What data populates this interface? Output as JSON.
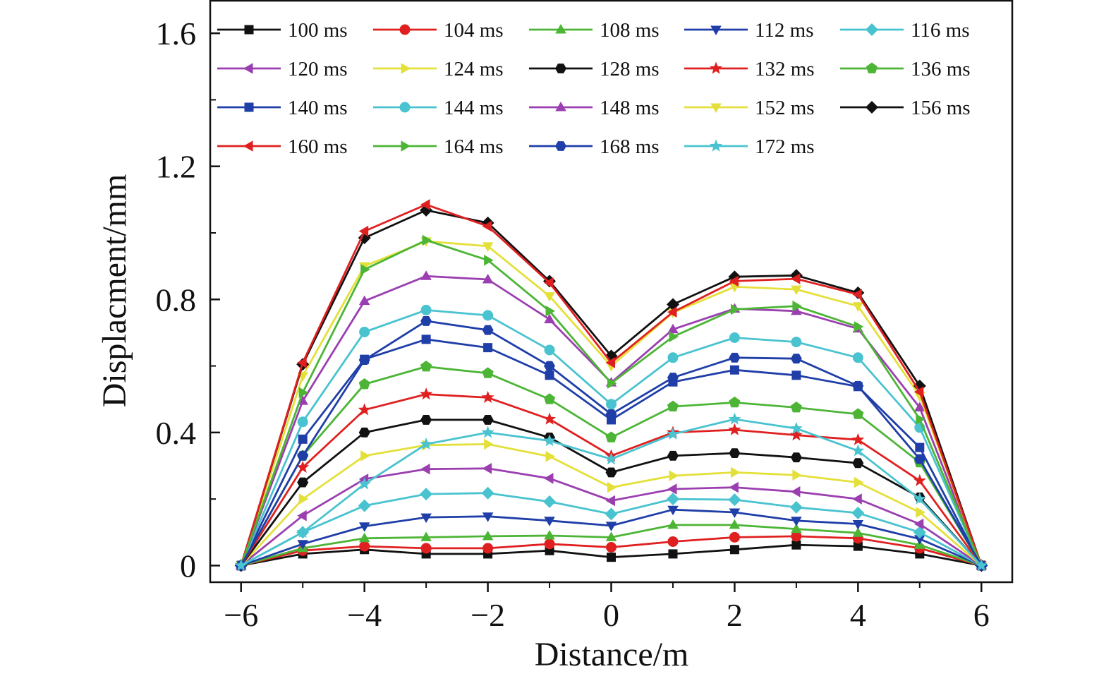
{
  "chart_data": {
    "type": "line",
    "xlabel": "Distance/m",
    "ylabel": "Displacment/mm",
    "xlim": [
      -6.5,
      6.5
    ],
    "ylim": [
      -0.05,
      1.7
    ],
    "xticks": [
      -6,
      -4,
      -2,
      0,
      2,
      4,
      6
    ],
    "xtick_labels": [
      "−6",
      "−4",
      "−2",
      "0",
      "2",
      "4",
      "6"
    ],
    "yticks": [
      0,
      0.4,
      0.8,
      1.2,
      1.6
    ],
    "ytick_labels": [
      "0",
      "0.4",
      "0.8",
      "1.2",
      "1.6"
    ],
    "grid": false,
    "legend_position": "top",
    "x": [
      -6,
      -5,
      -4,
      -3,
      -2,
      -1,
      0,
      1,
      2,
      3,
      4,
      5,
      6
    ],
    "series": [
      {
        "name": "100 ms",
        "color": "#111111",
        "marker": "square",
        "values": [
          0,
          0.035,
          0.048,
          0.035,
          0.035,
          0.045,
          0.025,
          0.035,
          0.048,
          0.062,
          0.058,
          0.035,
          0
        ]
      },
      {
        "name": "104 ms",
        "color": "#e02020",
        "marker": "circle",
        "values": [
          0,
          0.045,
          0.058,
          0.052,
          0.052,
          0.065,
          0.055,
          0.072,
          0.085,
          0.088,
          0.082,
          0.052,
          0
        ]
      },
      {
        "name": "108 ms",
        "color": "#4cb535",
        "marker": "triangle-up",
        "values": [
          0,
          0.052,
          0.082,
          0.085,
          0.088,
          0.09,
          0.085,
          0.122,
          0.122,
          0.11,
          0.098,
          0.062,
          0
        ]
      },
      {
        "name": "112 ms",
        "color": "#1f3ea8",
        "marker": "triangle-down",
        "values": [
          0,
          0.065,
          0.118,
          0.145,
          0.148,
          0.135,
          0.12,
          0.168,
          0.16,
          0.135,
          0.125,
          0.08,
          0
        ]
      },
      {
        "name": "116 ms",
        "color": "#49c3cf",
        "marker": "diamond",
        "values": [
          0,
          0.1,
          0.18,
          0.215,
          0.218,
          0.192,
          0.155,
          0.2,
          0.198,
          0.175,
          0.158,
          0.1,
          0
        ]
      },
      {
        "name": "120 ms",
        "color": "#9b3fb0",
        "marker": "triangle-left",
        "values": [
          0,
          0.15,
          0.26,
          0.29,
          0.292,
          0.262,
          0.195,
          0.23,
          0.235,
          0.222,
          0.2,
          0.125,
          0
        ]
      },
      {
        "name": "124 ms",
        "color": "#e4e03a",
        "marker": "triangle-right",
        "values": [
          0,
          0.2,
          0.33,
          0.362,
          0.365,
          0.328,
          0.235,
          0.27,
          0.28,
          0.272,
          0.25,
          0.16,
          0
        ]
      },
      {
        "name": "128 ms",
        "color": "#111111",
        "marker": "hexagon",
        "values": [
          0,
          0.25,
          0.4,
          0.438,
          0.438,
          0.385,
          0.28,
          0.33,
          0.338,
          0.325,
          0.308,
          0.205,
          0
        ]
      },
      {
        "name": "132 ms",
        "color": "#e02020",
        "marker": "star",
        "values": [
          0,
          0.295,
          0.468,
          0.515,
          0.505,
          0.44,
          0.33,
          0.4,
          0.408,
          0.392,
          0.378,
          0.255,
          0
        ]
      },
      {
        "name": "136 ms",
        "color": "#4cb535",
        "marker": "pentagon",
        "values": [
          0,
          0.33,
          0.545,
          0.598,
          0.578,
          0.5,
          0.385,
          0.478,
          0.49,
          0.475,
          0.455,
          0.31,
          0
        ]
      },
      {
        "name": "140 ms",
        "color": "#1f3ea8",
        "marker": "square",
        "values": [
          0,
          0.38,
          0.62,
          0.68,
          0.655,
          0.572,
          0.438,
          0.552,
          0.588,
          0.572,
          0.538,
          0.355,
          0
        ]
      },
      {
        "name": "144 ms",
        "color": "#49c3cf",
        "marker": "circle",
        "values": [
          0,
          0.432,
          0.702,
          0.768,
          0.752,
          0.648,
          0.485,
          0.625,
          0.685,
          0.672,
          0.625,
          0.415,
          0
        ]
      },
      {
        "name": "148 ms",
        "color": "#9b3fb0",
        "marker": "triangle-up",
        "values": [
          0,
          0.495,
          0.795,
          0.87,
          0.86,
          0.74,
          0.55,
          0.71,
          0.772,
          0.765,
          0.712,
          0.475,
          0
        ]
      },
      {
        "name": "152 ms",
        "color": "#e4e03a",
        "marker": "triangle-down",
        "values": [
          0,
          0.57,
          0.9,
          0.975,
          0.96,
          0.81,
          0.6,
          0.76,
          0.838,
          0.83,
          0.78,
          0.51,
          0
        ]
      },
      {
        "name": "156 ms",
        "color": "#111111",
        "marker": "diamond",
        "values": [
          0,
          0.605,
          0.985,
          1.068,
          1.03,
          0.855,
          0.63,
          0.785,
          0.868,
          0.872,
          0.82,
          0.54,
          0
        ]
      },
      {
        "name": "160 ms",
        "color": "#e02020",
        "marker": "triangle-left",
        "values": [
          0,
          0.61,
          1.005,
          1.085,
          1.02,
          0.85,
          0.61,
          0.762,
          0.855,
          0.862,
          0.815,
          0.522,
          0
        ]
      },
      {
        "name": "164 ms",
        "color": "#4cb535",
        "marker": "triangle-right",
        "values": [
          0,
          0.52,
          0.89,
          0.978,
          0.918,
          0.765,
          0.548,
          0.688,
          0.77,
          0.78,
          0.718,
          0.44,
          0
        ]
      },
      {
        "name": "168 ms",
        "color": "#1f3ea8",
        "marker": "hexagon",
        "values": [
          0,
          0.33,
          0.618,
          0.735,
          0.708,
          0.6,
          0.455,
          0.565,
          0.625,
          0.622,
          0.54,
          0.32,
          0
        ]
      },
      {
        "name": "172 ms",
        "color": "#49c3cf",
        "marker": "star",
        "values": [
          0,
          0.1,
          0.245,
          0.365,
          0.4,
          0.375,
          0.32,
          0.395,
          0.44,
          0.412,
          0.345,
          0.2,
          0
        ]
      }
    ]
  }
}
